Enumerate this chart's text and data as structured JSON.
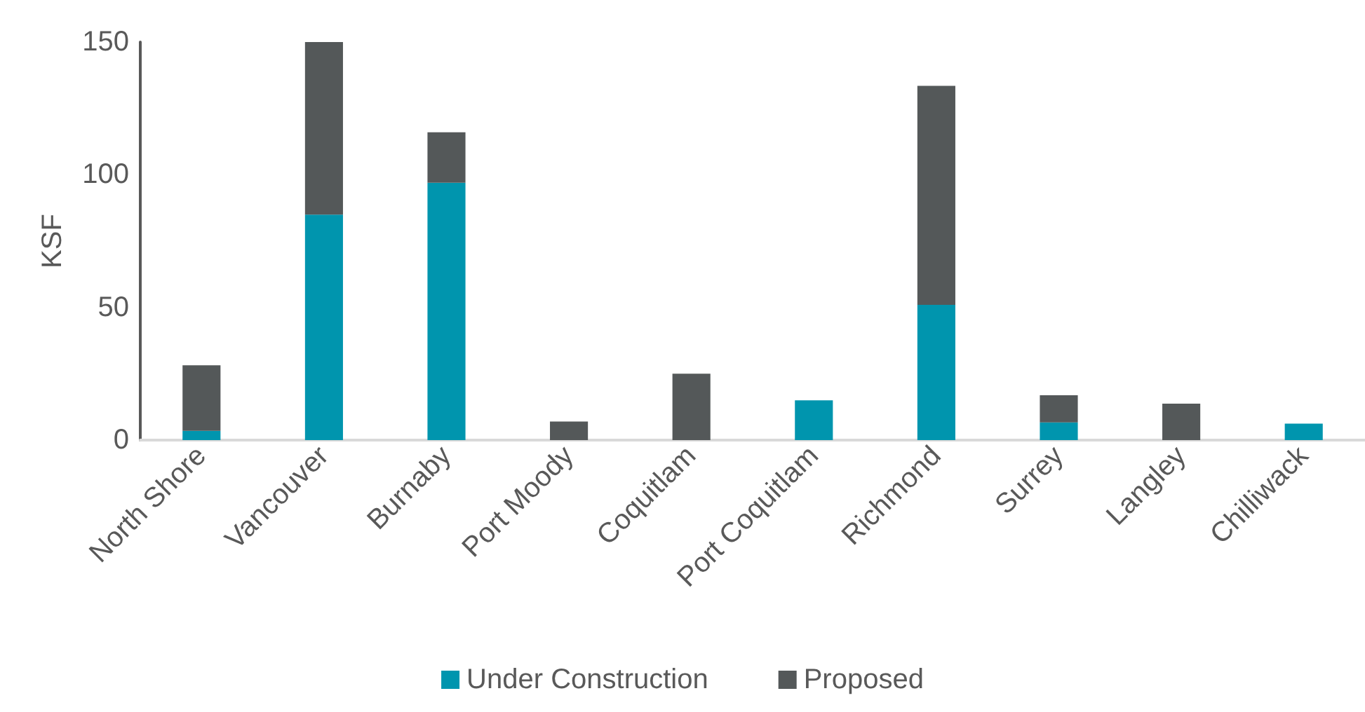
{
  "chart_data": {
    "type": "bar",
    "stacked": true,
    "ylabel": "KSF",
    "categories": [
      "North Shore",
      "Vancouver",
      "Burnaby",
      "Port Moody",
      "Coquitlam",
      "Port Coquitlam",
      "Richmond",
      "Surrey",
      "Langley",
      "Chilliwack"
    ],
    "series": [
      {
        "name": "Under Construction",
        "color": "#0095ae",
        "values": [
          3.5,
          85,
          97,
          null,
          null,
          15,
          51,
          6.7,
          null,
          6.2
        ]
      },
      {
        "name": "Proposed",
        "color": "#545859",
        "values": [
          24.7,
          65,
          19,
          7,
          25,
          null,
          82.5,
          10.2,
          13.7,
          null
        ]
      }
    ],
    "ylim": [
      0,
      150
    ],
    "yticks": [
      0,
      50,
      100,
      150
    ],
    "grid": false,
    "legend": "bottom"
  }
}
